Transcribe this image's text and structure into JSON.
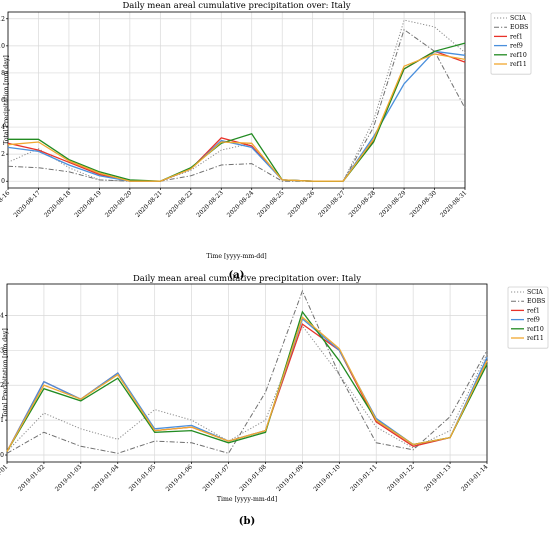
{
  "chart_data": [
    {
      "type": "line",
      "title": "Daily mean areal cumulative precipitation over: Italy",
      "xlabel": "Time [yyyy-mm-dd]",
      "ylabel": "Total Precipitation [mm day]",
      "x": [
        "2020-08-16",
        "2020-08-17",
        "2020-08-18",
        "2020-08-19",
        "2020-08-20",
        "2020-08-21",
        "2020-08-22",
        "2020-08-23",
        "2020-08-24",
        "2020-08-25",
        "2020-08-26",
        "2020-08-27",
        "2020-08-28",
        "2020-08-29",
        "2020-08-30",
        "2020-08-31"
      ],
      "ylim": [
        -0.5,
        12.5
      ],
      "yticks": [
        0,
        2,
        4,
        6,
        8,
        10,
        12
      ],
      "grid": true,
      "legend_position": "outside right",
      "caption": "(a)",
      "series": [
        {
          "name": "SCIA",
          "style": "dotted",
          "color": "#8c8c8c",
          "values": [
            1.4,
            2.4,
            1.0,
            0.1,
            0.0,
            0.0,
            0.8,
            2.3,
            2.8,
            0.1,
            0.0,
            0.0,
            4.5,
            11.9,
            11.4,
            9.5
          ]
        },
        {
          "name": "EOBS",
          "style": "dashdot",
          "color": "#707070",
          "values": [
            1.1,
            1.0,
            0.7,
            0.1,
            0.0,
            0.0,
            0.4,
            1.2,
            1.3,
            0.0,
            0.0,
            0.0,
            4.0,
            11.2,
            9.6,
            5.4
          ]
        },
        {
          "name": "ref1",
          "style": "solid",
          "color": "#e8322a",
          "values": [
            2.8,
            2.3,
            1.4,
            0.5,
            0.0,
            0.0,
            0.9,
            3.2,
            2.6,
            0.1,
            0.0,
            0.0,
            3.0,
            8.3,
            9.6,
            8.8
          ]
        },
        {
          "name": "ref9",
          "style": "solid",
          "color": "#4a8fdc",
          "values": [
            2.5,
            2.2,
            1.2,
            0.4,
            0.0,
            0.0,
            0.9,
            3.0,
            2.5,
            0.1,
            0.0,
            0.0,
            3.3,
            7.2,
            9.6,
            9.3
          ]
        },
        {
          "name": "ref10",
          "style": "solid",
          "color": "#228b22",
          "values": [
            3.1,
            3.1,
            1.6,
            0.7,
            0.1,
            0.0,
            1.0,
            2.8,
            3.5,
            0.1,
            0.0,
            0.0,
            2.9,
            8.3,
            9.6,
            10.2
          ]
        },
        {
          "name": "ref11",
          "style": "solid",
          "color": "#f0a830",
          "values": [
            2.7,
            2.9,
            1.5,
            0.6,
            0.0,
            0.0,
            0.9,
            2.9,
            2.8,
            0.1,
            0.0,
            0.0,
            3.1,
            8.5,
            9.4,
            9.0
          ]
        }
      ]
    },
    {
      "type": "line",
      "title": "Daily mean areal cumulative precipitation over: Italy",
      "xlabel": "Time [yyyy-mm-dd]",
      "ylabel": "Total Precipitation [mm day]",
      "x": [
        "2019-01-01",
        "2019-01-02",
        "2019-01-03",
        "2019-01-04",
        "2019-01-05",
        "2019-01-06",
        "2019-01-07",
        "2019-01-08",
        "2019-01-09",
        "2019-01-10",
        "2019-01-11",
        "2019-01-12",
        "2019-01-13",
        "2019-01-14"
      ],
      "ylim": [
        -0.2,
        4.9
      ],
      "yticks": [
        0,
        1,
        2,
        3,
        4
      ],
      "grid": true,
      "legend_position": "outside right",
      "caption": "(b)",
      "series": [
        {
          "name": "SCIA",
          "style": "dotted",
          "color": "#8c8c8c",
          "values": [
            0.1,
            1.2,
            0.75,
            0.45,
            1.3,
            1.0,
            0.4,
            1.0,
            3.7,
            2.3,
            0.8,
            0.2,
            0.7,
            2.9
          ]
        },
        {
          "name": "EOBS",
          "style": "dashdot",
          "color": "#707070",
          "values": [
            0.05,
            0.65,
            0.25,
            0.05,
            0.4,
            0.35,
            0.05,
            1.8,
            4.7,
            2.3,
            0.35,
            0.15,
            1.1,
            3.0
          ]
        },
        {
          "name": "ref1",
          "style": "solid",
          "color": "#e8322a",
          "values": [
            0.1,
            2.1,
            1.6,
            2.35,
            0.7,
            0.8,
            0.4,
            0.7,
            3.75,
            3.0,
            0.95,
            0.25,
            0.5,
            2.7
          ]
        },
        {
          "name": "ref9",
          "style": "solid",
          "color": "#4a8fdc",
          "values": [
            0.1,
            2.1,
            1.6,
            2.35,
            0.75,
            0.85,
            0.4,
            0.7,
            3.9,
            3.0,
            1.05,
            0.3,
            0.5,
            2.8
          ]
        },
        {
          "name": "ref10",
          "style": "solid",
          "color": "#228b22",
          "values": [
            0.1,
            1.9,
            1.55,
            2.2,
            0.65,
            0.7,
            0.35,
            0.65,
            4.1,
            2.7,
            1.0,
            0.3,
            0.5,
            2.6
          ]
        },
        {
          "name": "ref11",
          "style": "solid",
          "color": "#f0a830",
          "values": [
            0.1,
            2.0,
            1.6,
            2.3,
            0.7,
            0.8,
            0.4,
            0.7,
            3.95,
            3.05,
            1.0,
            0.3,
            0.5,
            2.7
          ]
        }
      ]
    }
  ]
}
